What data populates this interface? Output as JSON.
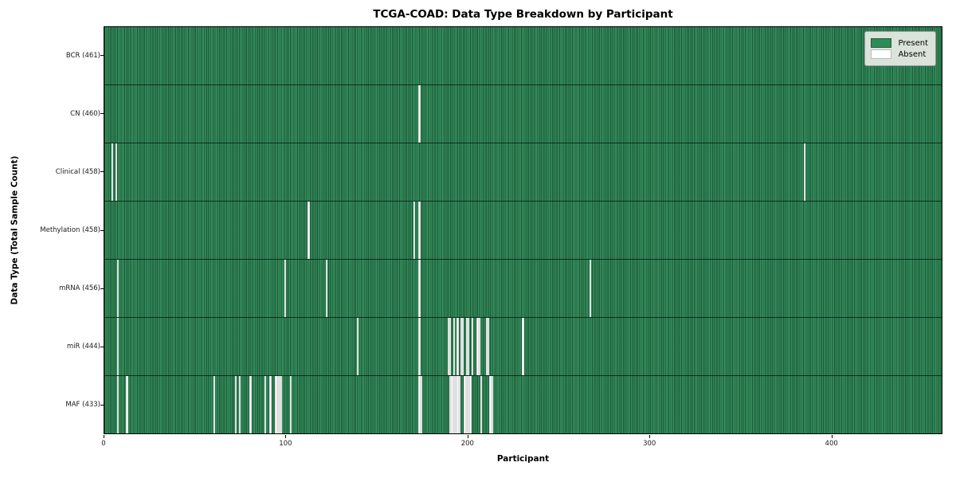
{
  "title": "TCGA-COAD: Data Type Breakdown by Participant",
  "chart_data": {
    "type": "heatmap",
    "title": "TCGA-COAD: Data Type Breakdown by Participant",
    "xlabel": "Participant",
    "ylabel": "Data Type (Total Sample Count)",
    "x_ticks": [
      0,
      100,
      200,
      300,
      400
    ],
    "x_range": [
      0,
      461
    ],
    "n_participants": 461,
    "grid": "off",
    "legend": {
      "position": "upper right",
      "present_label": "Present",
      "absent_label": "Absent"
    },
    "colors": {
      "present": "#2e8b57",
      "absent": "#ffffff",
      "bar_edge": "#0a2819",
      "legend_bg": "#e9edE6"
    },
    "rows": [
      {
        "label": "BCR",
        "total": 461,
        "display": "BCR (461)",
        "absent_participants": []
      },
      {
        "label": "CN",
        "total": 460,
        "display": "CN (460)",
        "absent_participants": [
          173
        ]
      },
      {
        "label": "Clinical",
        "total": 458,
        "display": "Clinical (458)",
        "absent_participants": [
          4,
          6,
          385
        ]
      },
      {
        "label": "Methylation",
        "total": 458,
        "display": "Methylation (458)",
        "absent_participants": [
          112,
          170,
          173
        ]
      },
      {
        "label": "mRNA",
        "total": 456,
        "display": "mRNA (456)",
        "absent_participants": [
          7,
          99,
          122,
          173,
          267
        ]
      },
      {
        "label": "miR",
        "total": 444,
        "display": "miR (444)",
        "absent_participants": [
          7,
          139,
          173,
          189,
          190,
          192,
          194,
          196,
          197,
          199,
          200,
          202,
          205,
          206,
          210,
          211,
          230
        ]
      },
      {
        "label": "MAF",
        "total": 433,
        "display": "MAF (433)",
        "absent_participants": [
          7,
          12,
          60,
          72,
          74,
          80,
          88,
          91,
          94,
          95,
          96,
          97,
          102,
          173,
          174,
          190,
          191,
          192,
          193,
          194,
          195,
          198,
          199,
          200,
          201,
          207,
          212,
          213
        ]
      }
    ]
  }
}
